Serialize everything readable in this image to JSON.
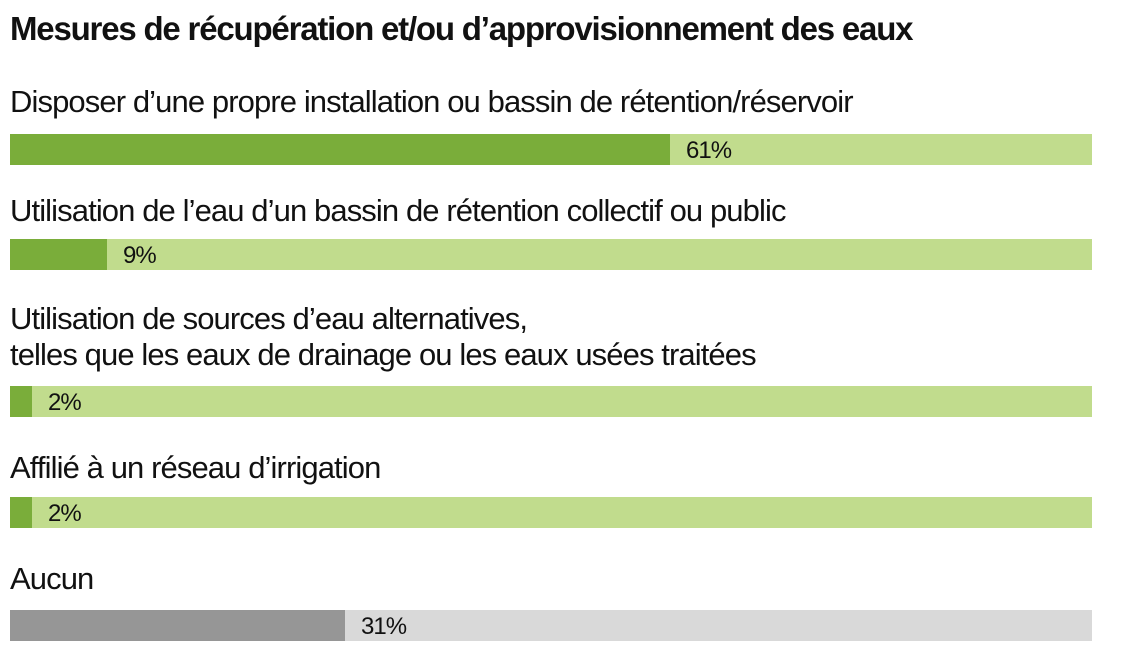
{
  "chart_data": {
    "type": "bar",
    "orientation": "horizontal",
    "title": "Mesures de récupération et/ou d’approvisionnement des eaux",
    "xlim": [
      0,
      100
    ],
    "unit": "%",
    "categories": [
      [
        "Disposer d’une propre installation ou bassin de rétention/réservoir"
      ],
      [
        "Utilisation de l’eau d’un bassin de rétention collectif ou public"
      ],
      [
        "Utilisation de sources d’eau alternatives,",
        "telles que les eaux de drainage ou les eaux usées traitées"
      ],
      [
        "Affilié à un réseau d’irrigation"
      ],
      [
        "Aucun"
      ]
    ],
    "values": [
      61,
      9,
      2,
      2,
      31
    ],
    "value_labels": [
      "61%",
      "9%",
      "2%",
      "2%",
      "31%"
    ],
    "colors": {
      "fill": [
        "#7aad3a",
        "#7aad3a",
        "#7aad3a",
        "#7aad3a",
        "#969696"
      ],
      "track": [
        "#c1dc8d",
        "#c1dc8d",
        "#c1dc8d",
        "#c1dc8d",
        "#d9d9d9"
      ]
    }
  }
}
